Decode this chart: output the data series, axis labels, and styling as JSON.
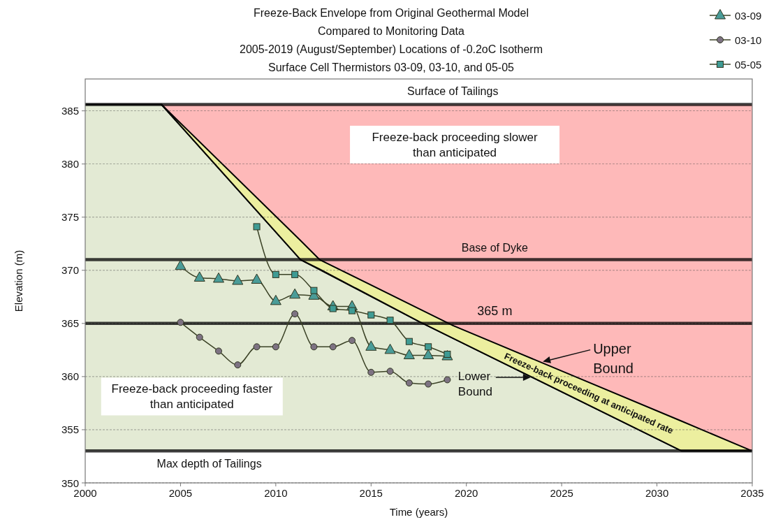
{
  "chart_data": {
    "type": "line",
    "title": "Freeze-Back Envelope from Original Geothermal Model\nCompared to Monitoring Data\n2005-2019 (August/September) Locations of -0.2oC Isotherm\nSurface Cell Thermistors 03-09, 03-10, and 05-05",
    "xlabel": "Time (years)",
    "ylabel": "Elevation (m)",
    "xlim": [
      2000,
      2035
    ],
    "xticks": [
      2000,
      2005,
      2010,
      2015,
      2020,
      2025,
      2030,
      2035
    ],
    "ylim": [
      350,
      388
    ],
    "yticks": [
      350,
      355,
      360,
      365,
      370,
      375,
      380,
      385
    ],
    "grid": "y",
    "legend": "top right",
    "bands": [
      {
        "axis": "y",
        "from": 353,
        "to": 385.6,
        "color": "#feb9b9"
      },
      {
        "axis": "y",
        "from": 350,
        "to": 353,
        "color": "#ffffff"
      }
    ],
    "ref_lines": [
      {
        "axis": "y",
        "value": 385.6,
        "label": "Surface of Tailings"
      },
      {
        "axis": "y",
        "value": 371,
        "label": "Base of Dyke"
      },
      {
        "axis": "y",
        "value": 365,
        "label": "365 m"
      },
      {
        "axis": "y",
        "value": 353,
        "label": "Max depth of Tailings"
      }
    ],
    "series": [
      {
        "type": "area",
        "color": "#e3ead4",
        "x": [
          2000,
          2004,
          2011.3,
          2017.5,
          2031.3,
          2035
        ],
        "values": [
          385.6,
          385.6,
          371,
          365.2,
          353,
          353
        ]
      },
      {
        "color": "#000000",
        "marker": "none",
        "x": [
          2004,
          2011.3,
          2012.3,
          2017.5,
          2019.3,
          2031.3,
          2035
        ],
        "values": [
          385.6,
          372.8,
          371,
          366.4,
          364.8,
          355.8,
          353
        ],
        "lower": [
          385.6,
          371,
          370.1,
          365.2,
          363.6,
          353,
          353
        ],
        "upper": [
          385.6,
          372.8,
          371,
          366.4,
          364.8,
          355.8,
          353
        ]
      },
      {
        "name": "03-09",
        "color": "#4a9c98",
        "marker": "triangle",
        "x": [
          2005,
          2006,
          2007,
          2008,
          2009,
          2010,
          2011,
          2012,
          2013,
          2014,
          2015,
          2016,
          2017,
          2018,
          2019
        ],
        "values": [
          370.4,
          369.3,
          369.2,
          369.0,
          369.1,
          367.1,
          367.7,
          367.6,
          366.6,
          366.6,
          362.8,
          362.5,
          362.0,
          362.0,
          361.9
        ]
      },
      {
        "name": "03-10",
        "color": "#7d7282",
        "marker": "circle",
        "x": [
          2005,
          2006,
          2007,
          2008,
          2009,
          2010,
          2011,
          2012,
          2013,
          2014,
          2015,
          2016,
          2017,
          2018,
          2019
        ],
        "values": [
          365.1,
          363.7,
          362.4,
          361.1,
          362.8,
          362.8,
          365.9,
          362.8,
          362.8,
          363.4,
          360.4,
          360.5,
          359.4,
          359.3,
          359.7
        ]
      },
      {
        "name": "05-05",
        "color": "#3f9b94",
        "marker": "square",
        "x": [
          2009,
          2010,
          2011,
          2012,
          2013,
          2014,
          2015,
          2016,
          2017,
          2018,
          2019
        ],
        "values": [
          374.1,
          369.6,
          369.6,
          368.1,
          366.4,
          366.2,
          365.8,
          365.3,
          363.3,
          362.8,
          362.1
        ]
      }
    ],
    "annotations": [
      "Freeze-back proceeding slower than anticipated",
      "Freeze-back proceeding faster than anticipated",
      "Freeze-back proceeding at anticipated rate",
      "Upper Bound",
      "Lower Bound"
    ]
  }
}
